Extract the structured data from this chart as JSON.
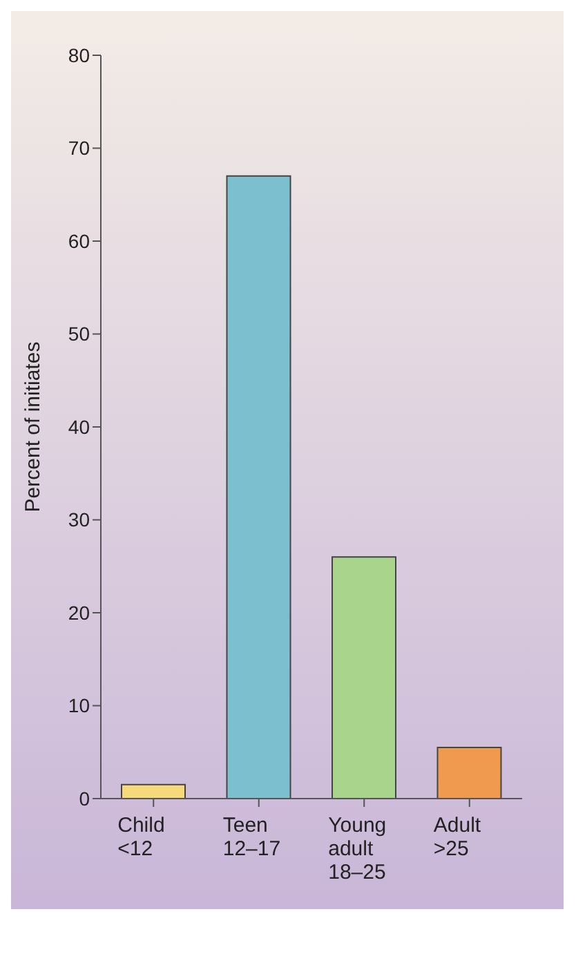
{
  "chart_data": {
    "type": "bar",
    "ylabel": "Percent of initiates",
    "categories": [
      "Child\n<12",
      "Teen\n12–17",
      "Young\nadult\n18–25",
      "Adult\n>25"
    ],
    "values": [
      1.5,
      67,
      26,
      5.5
    ],
    "colors": [
      "#f5d97a",
      "#7cc0d0",
      "#a8d48c",
      "#f09a50"
    ],
    "ylim": [
      0,
      80
    ],
    "yticks": [
      0,
      10,
      20,
      30,
      40,
      50,
      60,
      70,
      80
    ],
    "grid": false
  }
}
